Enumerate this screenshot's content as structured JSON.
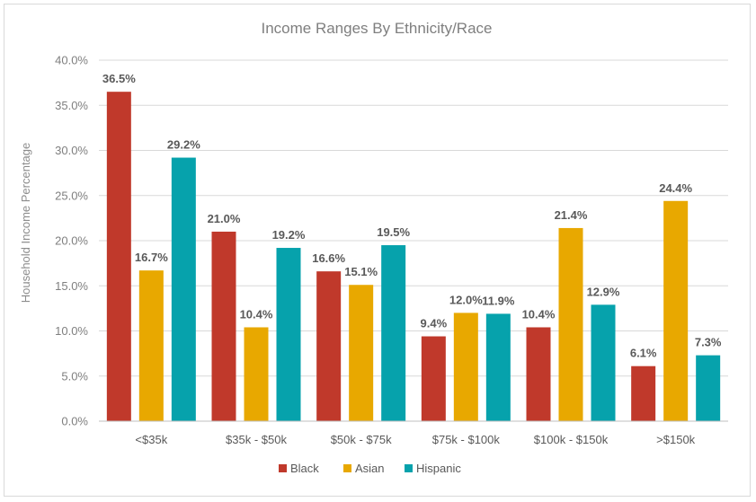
{
  "chart_data": {
    "type": "bar",
    "title": "Income Ranges By Ethnicity/Race",
    "xlabel": "",
    "ylabel": "Household Income Percentage",
    "ylim": [
      0,
      40
    ],
    "y_ticks": [
      "0.0%",
      "5.0%",
      "10.0%",
      "15.0%",
      "20.0%",
      "25.0%",
      "30.0%",
      "35.0%",
      "40.0%"
    ],
    "y_tick_values": [
      0,
      5,
      10,
      15,
      20,
      25,
      30,
      35,
      40
    ],
    "grid": true,
    "legend_position": "bottom",
    "categories": [
      "<$35k",
      "$35k - $50k",
      "$50k - $75k",
      "$75k - $100k",
      "$100k - $150k",
      ">$150k"
    ],
    "series": [
      {
        "name": "Black",
        "color": "#c0392b",
        "values": [
          36.5,
          21.0,
          16.6,
          9.4,
          10.4,
          6.1
        ],
        "labels": [
          "36.5%",
          "21.0%",
          "16.6%",
          "9.4%",
          "10.4%",
          "6.1%"
        ]
      },
      {
        "name": "Asian",
        "color": "#e8a800",
        "values": [
          16.7,
          10.4,
          15.1,
          12.0,
          21.4,
          24.4
        ],
        "labels": [
          "16.7%",
          "10.4%",
          "15.1%",
          "12.0%",
          "21.4%",
          "24.4%"
        ]
      },
      {
        "name": "Hispanic",
        "color": "#06a2ac",
        "values": [
          29.2,
          19.2,
          19.5,
          11.9,
          12.9,
          7.3
        ],
        "labels": [
          "29.2%",
          "19.2%",
          "19.5%",
          "11.9%",
          "12.9%",
          "7.3%"
        ]
      }
    ]
  }
}
